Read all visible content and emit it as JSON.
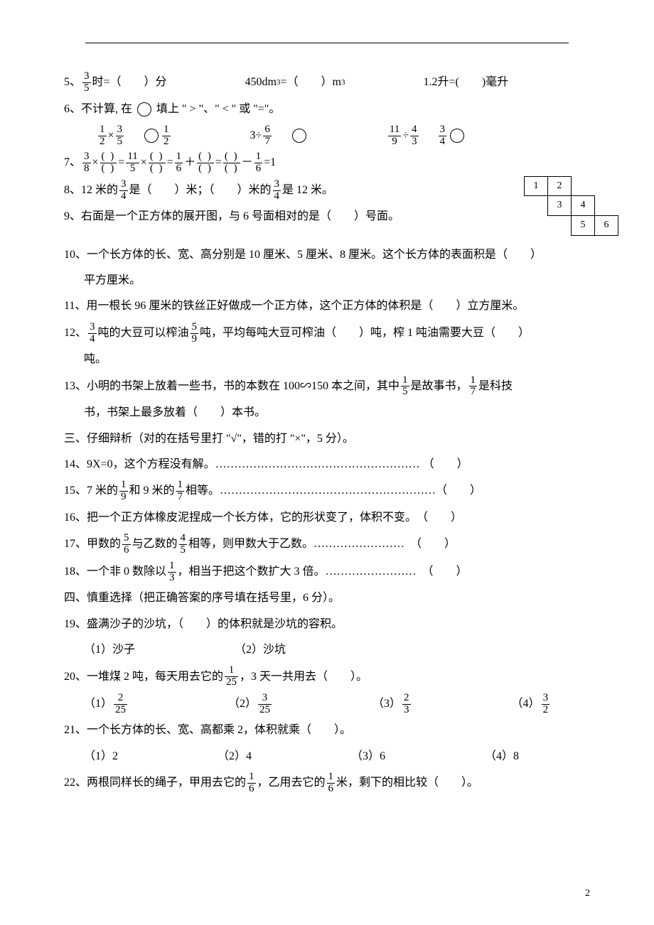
{
  "q5": {
    "prefix": "5、",
    "p1a": "时=（　　）分",
    "p2": "450dm",
    "p2_exp": "3",
    "p2_mid": " =（　　）m",
    "p3": "1.2升=(　　)毫升"
  },
  "q6": {
    "prefix": "6、不计算, 在",
    "tail": "填上 \" > \"、\" < \" 或 \"=\"。",
    "e1_mid": "×",
    "e2_left": "3÷",
    "e3_mid": "÷"
  },
  "fr": {
    "three": "3",
    "five": "5",
    "one": "1",
    "two": "2",
    "six": "6",
    "seven": "7",
    "eleven": "11",
    "nine": "9",
    "four": "4",
    "eight": "8",
    "paren": "(  )",
    "q5_num": "3",
    "q5_den": "5",
    "q6a_n": "1",
    "q6a_d": "2",
    "q6b_n": "3",
    "q6b_d": "5",
    "q6c_n": "1",
    "q6c_d": "2",
    "q6d_n": "6",
    "q6d_d": "7",
    "q6e_n": "11",
    "q6e_d": "9",
    "q6f_n": "4",
    "q6f_d": "3",
    "q6g_n": "3",
    "q6g_d": "4",
    "q7a_n": "3",
    "q7a_d": "8",
    "q7b_n": "11",
    "q7b_d": "5",
    "q7c_n": "1",
    "q7c_d": "6",
    "q7d_n": "1",
    "q7d_d": "6",
    "q8_n": "3",
    "q8_d": "4",
    "q12a_n": "3",
    "q12a_d": "4",
    "q12b_n": "5",
    "q12b_d": "9",
    "q13a_n": "1",
    "q13a_d": "5",
    "q13b_n": "1",
    "q13b_d": "7",
    "q15a_n": "1",
    "q15a_d": "9",
    "q15b_n": "1",
    "q15b_d": "7",
    "q17a_n": "5",
    "q17a_d": "6",
    "q17b_n": "4",
    "q17b_d": "5",
    "q18_n": "1",
    "q18_d": "3",
    "q20_n": "1",
    "q20_d": "25",
    "q20o1_n": "2",
    "q20o1_d": "25",
    "q20o2_n": "3",
    "q20o2_d": "25",
    "q20o3_n": "2",
    "q20o3_d": "3",
    "q20o4_n": "3",
    "q20o4_d": "2",
    "q22_n": "1",
    "q22_d": "6"
  },
  "q7": {
    "prefix": "7、",
    "times": "×",
    "eq": "=",
    "plus": "＋",
    "minus": "－",
    "one": "=1"
  },
  "q8": {
    "prefix": "8、12 米的",
    "mid1": "是（　　）米；（　　）米的",
    "tail": "是 12 米。"
  },
  "net": {
    "c1": "1",
    "c2": "2",
    "c3": "3",
    "c4": "4",
    "c5": "5",
    "c6": "6"
  },
  "q9": "9、右面是一个正方体的展开图，与 6 号面相对的是（　　）号面。",
  "q10": "10、一个长方体的长、宽、高分别是 10 厘米、5 厘米、8 厘米。这个长方体的表面积是（　　）",
  "q10b": "平方厘米。",
  "q11": "11、用一根长 96 厘米的铁丝正好做成一个正方体，这个正方体的体积是（　　）立方厘米。",
  "q12": {
    "prefix": "12、",
    "mid1": "吨的大豆可以榨油",
    "mid2": "吨，平均每吨大豆可榨油（　　）吨，榨 1 吨油需要大豆（　　）",
    "tail": "吨。"
  },
  "q13": {
    "prefix": "13、小明的书架上放着一些书，书的本数在 100∽150 本之间，其中",
    "mid": "是故事书，",
    "mid2": "是科技",
    "tail": "书，书架上最多放着（　　）本书。"
  },
  "s3": "三、仔细辩析（对的在括号里打 \"√\"，错的打 \"×\"，5 分）。",
  "q14": "14、9X=0，这个方程没有解。………………………………………………  （　　）",
  "q15": {
    "a": "15、7 米的",
    "b": "和 9 米的",
    "c": "相等。…………………………………………………（　　）"
  },
  "q16": "16、把一个正方体橡皮泥捏成一个长方体，它的形状变了，体积不变。　（　　）",
  "q17": {
    "a": "17、甲数的",
    "b": "与乙数的",
    "c": "相等，则甲数大于乙数。……………………　（　　）"
  },
  "q18": {
    "a": "18、一个非 0 数除以",
    "b": "，相当于把这个数扩大 3 倍。……………………　（　　）"
  },
  "s4": "四、慎重选择（把正确答案的序号填在括号里，6 分）。",
  "q19": "19、盛满沙子的沙坑，（　　）的体积就是沙坑的容积。",
  "q19o": {
    "a": "（1）沙子",
    "b": "（2）沙坑"
  },
  "q20": {
    "a": "20、一堆煤 2 吨，每天用去它的",
    "b": "，3 天一共用去（　　）。"
  },
  "q20labels": {
    "a": "（1）",
    "b": "（2）",
    "c": "（3）",
    "d": "（4）"
  },
  "q21": "21、一个长方体的长、宽、高都乘 2，体积就乘（　　）。",
  "q21o": {
    "a": "（1）2",
    "b": "（2）4",
    "c": "（3）6",
    "d": "（4）8"
  },
  "q22": {
    "a": "22、两根同样长的绳子，甲用去它的",
    "b": "，乙用去它的",
    "c": "米，剩下的相比较（　　）。"
  },
  "pagenum": "2"
}
